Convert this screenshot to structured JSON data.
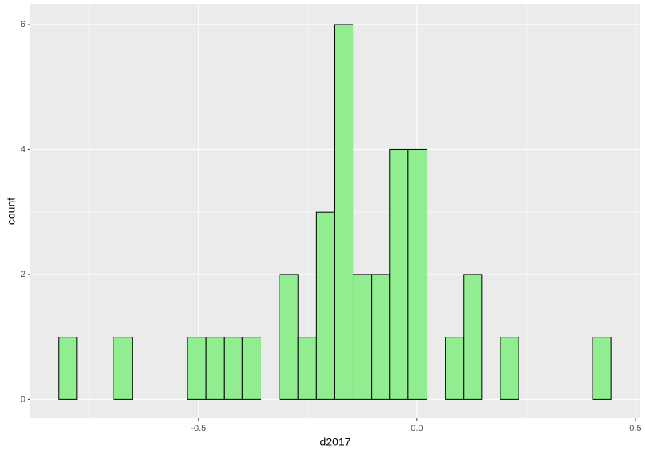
{
  "chart_data": {
    "type": "histogram",
    "x_label": "d2017",
    "y_label": "count",
    "bins": [
      -0.82,
      -0.778,
      -0.736,
      -0.694,
      -0.651,
      -0.609,
      -0.567,
      -0.525,
      -0.483,
      -0.441,
      -0.399,
      -0.357,
      -0.314,
      -0.272,
      -0.23,
      -0.188,
      -0.146,
      -0.104,
      -0.062,
      -0.02,
      0.023,
      0.065,
      0.107,
      0.149,
      0.191,
      0.233,
      0.275,
      0.317,
      0.36,
      0.402,
      0.444
    ],
    "values": [
      1,
      0,
      0,
      1,
      0,
      0,
      0,
      1,
      1,
      1,
      1,
      0,
      2,
      1,
      3,
      6,
      2,
      2,
      4,
      4,
      0,
      1,
      2,
      0,
      1,
      0,
      0,
      0,
      0,
      1
    ],
    "color": "#90EE90",
    "edge_color": "#000000",
    "xlim": [
      -0.885,
      0.511
    ],
    "ylim": [
      -0.3,
      6.33
    ],
    "xticks": [
      -0.5,
      {
        "value": 0,
        "label": "0.0"
      },
      0.5
    ],
    "yticks": [
      0,
      2,
      4,
      6
    ],
    "grid": true
  }
}
